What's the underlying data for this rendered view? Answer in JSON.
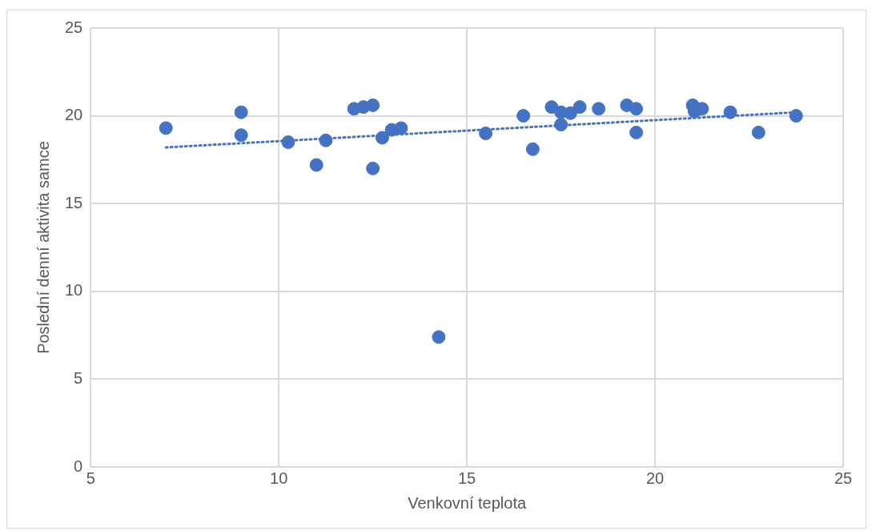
{
  "chart_data": {
    "type": "scatter",
    "xlabel": "Venkovní teplota",
    "ylabel": "Poslední denní aktivita samce",
    "xlim": [
      5,
      25
    ],
    "xticks": [
      5,
      10,
      15,
      20,
      25
    ],
    "ylim": [
      0,
      25
    ],
    "yticks": [
      0,
      5,
      10,
      15,
      20,
      25
    ],
    "grid": true,
    "legend": false,
    "marker": "circle",
    "series": [
      {
        "type": "scatter",
        "color": "#4472c4",
        "x": [
          7.0,
          9.0,
          9.0,
          10.25,
          11.0,
          11.25,
          12.0,
          12.25,
          12.5,
          12.5,
          12.75,
          13.0,
          13.25,
          14.25,
          15.5,
          16.5,
          16.75,
          17.25,
          17.5,
          17.5,
          17.75,
          18.0,
          18.5,
          19.25,
          19.5,
          19.5,
          21.0,
          21.05,
          21.25,
          22.0,
          22.75,
          23.75
        ],
        "values": [
          19.3,
          20.2,
          18.9,
          18.5,
          17.2,
          18.6,
          20.4,
          20.5,
          20.6,
          17.0,
          18.75,
          19.2,
          19.3,
          7.4,
          19.0,
          20.0,
          18.1,
          20.5,
          20.2,
          19.5,
          20.15,
          20.5,
          20.4,
          20.6,
          20.4,
          19.05,
          20.6,
          20.25,
          20.4,
          20.2,
          19.05,
          20.0
        ]
      },
      {
        "type": "line",
        "color": "#4472c4",
        "line_style": "dotted",
        "marker": "none",
        "x": [
          7.0,
          23.75
        ],
        "values": [
          18.2,
          20.2
        ]
      }
    ]
  }
}
